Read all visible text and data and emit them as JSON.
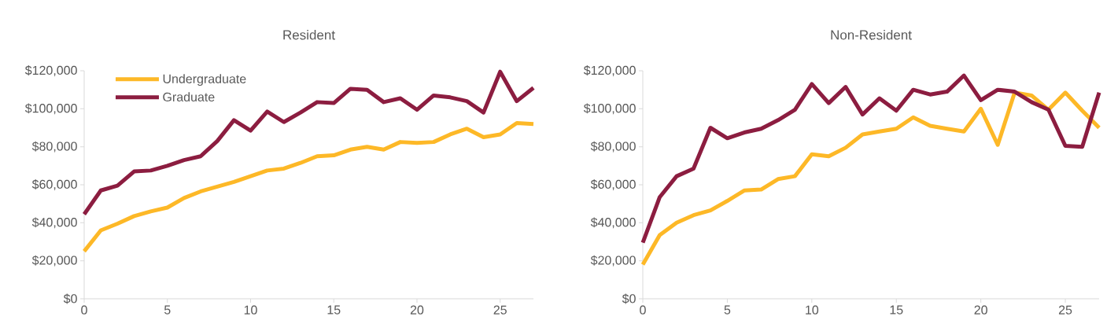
{
  "chart_data": [
    {
      "type": "line",
      "title": "Resident",
      "x": [
        0,
        1,
        2,
        3,
        4,
        5,
        6,
        7,
        8,
        9,
        10,
        11,
        12,
        13,
        14,
        15,
        16,
        17,
        18,
        19,
        20,
        21,
        22,
        23,
        24,
        25,
        26,
        27
      ],
      "xlim": [
        0,
        27
      ],
      "xticks": [
        0,
        5,
        10,
        15,
        20,
        25
      ],
      "ylim": [
        0,
        120000
      ],
      "yticks": [
        {
          "value": 0,
          "label": "$0"
        },
        {
          "value": 20000,
          "label": "$20,000"
        },
        {
          "value": 40000,
          "label": "$40,000"
        },
        {
          "value": 60000,
          "label": "$60,000"
        },
        {
          "value": 80000,
          "label": "$80,000"
        },
        {
          "value": 100000,
          "label": "$100,000"
        },
        {
          "value": 120000,
          "label": "$120,000"
        }
      ],
      "grid": false,
      "legend": "top left",
      "marker": "none",
      "line_style": "solid",
      "series": [
        {
          "name": "Undergraduate",
          "color": "#fdb827",
          "values": [
            25000,
            36000,
            39500,
            43500,
            46000,
            48000,
            53000,
            56500,
            59000,
            61500,
            64500,
            67500,
            68500,
            71500,
            75000,
            75500,
            78500,
            80000,
            78500,
            82500,
            82000,
            82500,
            86500,
            89500,
            85000,
            86500,
            92500,
            92000
          ]
        },
        {
          "name": "Graduate",
          "color": "#8c1d40",
          "values": [
            44500,
            57000,
            59500,
            67000,
            67500,
            70000,
            73000,
            75000,
            83000,
            94000,
            88500,
            98500,
            93000,
            98000,
            103500,
            103000,
            110500,
            110000,
            103500,
            105500,
            99500,
            107000,
            106000,
            104000,
            98000,
            119500,
            104000,
            111000
          ]
        }
      ]
    },
    {
      "type": "line",
      "title": "Non-Resident",
      "x": [
        0,
        1,
        2,
        3,
        4,
        5,
        6,
        7,
        8,
        9,
        10,
        11,
        12,
        13,
        14,
        15,
        16,
        17,
        18,
        19,
        20,
        21,
        22,
        23,
        24,
        25,
        26,
        27
      ],
      "xlim": [
        0,
        27
      ],
      "xticks": [
        0,
        5,
        10,
        15,
        20,
        25
      ],
      "ylim": [
        0,
        120000
      ],
      "yticks": [
        {
          "value": 0,
          "label": "$0"
        },
        {
          "value": 20000,
          "label": "$20,000"
        },
        {
          "value": 40000,
          "label": "$40,000"
        },
        {
          "value": 60000,
          "label": "$60,000"
        },
        {
          "value": 80000,
          "label": "$80,000"
        },
        {
          "value": 100000,
          "label": "$100,000"
        },
        {
          "value": 120000,
          "label": "$120,000"
        }
      ],
      "grid": false,
      "marker": "none",
      "line_style": "solid",
      "series": [
        {
          "color": "#fdb827",
          "values": [
            18000,
            33500,
            40000,
            44000,
            46500,
            51500,
            57000,
            57500,
            63000,
            64500,
            76000,
            75000,
            79500,
            86500,
            88000,
            89500,
            95500,
            91000,
            89500,
            88000,
            100000,
            81000,
            108500,
            107000,
            99500,
            108500,
            99000,
            90000
          ]
        },
        {
          "color": "#8c1d40",
          "values": [
            29500,
            53500,
            64500,
            68500,
            90000,
            84500,
            87500,
            89500,
            94000,
            99500,
            113000,
            103000,
            111500,
            97000,
            105500,
            99000,
            110000,
            107500,
            109000,
            117500,
            104500,
            110000,
            109000,
            103500,
            99500,
            80500,
            80000,
            108500
          ]
        }
      ]
    }
  ]
}
